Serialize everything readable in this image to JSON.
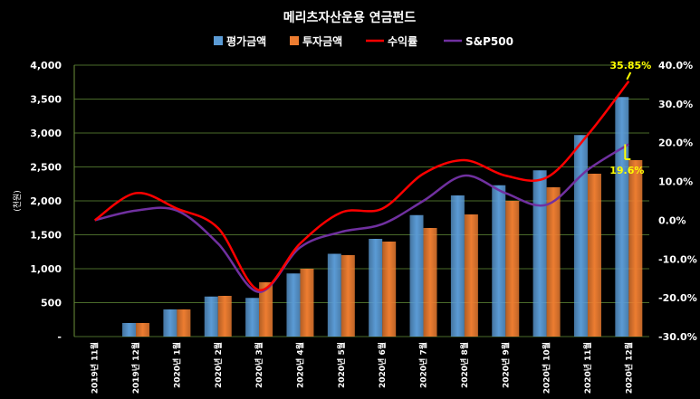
{
  "chart_data": {
    "type": "bar",
    "title": "메리츠자산운용 연금펀드",
    "ylabel": "(천원)",
    "categories": [
      "2019년 11월",
      "2019년 12월",
      "2020년 1월",
      "2020년 2월",
      "2020년 3월",
      "2020년 4월",
      "2020년 5월",
      "2020년 6월",
      "2020년 7월",
      "2020년 8월",
      "2020년 9월",
      "2020년 10월",
      "2020년 11월",
      "2020년 12월"
    ],
    "ylim": [
      0,
      4000
    ],
    "y2lim": [
      -30,
      40
    ],
    "y_ticks": [
      "-",
      "500",
      "1,000",
      "1,500",
      "2,000",
      "2,500",
      "3,000",
      "3,500",
      "4,000"
    ],
    "y2_ticks": [
      "-30.0%",
      "-20.0%",
      "-10.0%",
      "0.0%",
      "10.0%",
      "20.0%",
      "30.0%",
      "40.0%"
    ],
    "series": [
      {
        "name": "평가금액",
        "axis": "left",
        "kind": "bar",
        "color": "#5b9bd5",
        "values": [
          0,
          200,
          400,
          590,
          570,
          930,
          1220,
          1440,
          1790,
          2080,
          2230,
          2450,
          2970,
          3530
        ]
      },
      {
        "name": "투자금액",
        "axis": "left",
        "kind": "bar",
        "color": "#ed7d31",
        "values": [
          0,
          200,
          400,
          600,
          800,
          1000,
          1200,
          1400,
          1600,
          1800,
          2000,
          2200,
          2400,
          2600
        ]
      },
      {
        "name": "수익률",
        "axis": "right",
        "kind": "line",
        "color": "#ff0000",
        "values": [
          0.0,
          7.0,
          3.0,
          -2.0,
          -18.0,
          -6.0,
          2.0,
          3.0,
          12.0,
          15.5,
          11.5,
          11.0,
          22.0,
          35.85
        ]
      },
      {
        "name": "S&P500",
        "axis": "right",
        "kind": "line",
        "color": "#7030a0",
        "values": [
          0.0,
          2.5,
          2.5,
          -6.0,
          -18.5,
          -7.0,
          -3.0,
          -1.0,
          5.0,
          11.5,
          7.0,
          4.0,
          13.0,
          19.6
        ]
      }
    ],
    "annotations": [
      "35.85%",
      "19.6%"
    ]
  }
}
